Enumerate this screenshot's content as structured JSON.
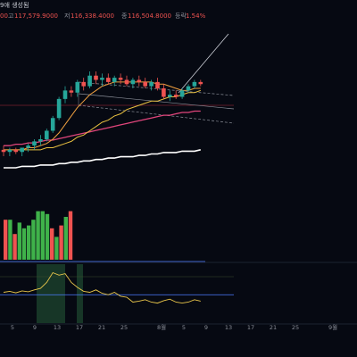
{
  "header": {
    "title_fragment": "9애 생성됨",
    "open_value": "00",
    "high_label": "고",
    "high_value": "117,579.9000",
    "low_label": "저",
    "low_value": "116,338.4000",
    "close_label": "종",
    "close_value": "116,504.8000",
    "change_label": "등락",
    "change_value": "1.54%"
  },
  "time_axis": {
    "labels": [
      "5",
      "9",
      "13",
      "17",
      "21",
      "25",
      "8월",
      "5",
      "9",
      "13",
      "17",
      "21",
      "25",
      "9월"
    ]
  },
  "colors": {
    "background": "#060912",
    "up": "#26a69a",
    "down": "#ef5350",
    "ma_short": "#f0a040",
    "ma_mid": "#e8c040",
    "ma_long": "#e0457b",
    "ma_longest": "#ffffff",
    "oscillator": "#e8c54a",
    "oscillator_signal": "#4d7cff",
    "price_line": "#8a2030"
  },
  "chart_data": {
    "type": "candlestick",
    "title": "",
    "candles": [
      {
        "o": 79,
        "h": 81,
        "l": 76,
        "c": 78
      },
      {
        "o": 78,
        "h": 80,
        "l": 76,
        "c": 79
      },
      {
        "o": 79,
        "h": 80,
        "l": 77,
        "c": 78
      },
      {
        "o": 78,
        "h": 80,
        "l": 76,
        "c": 80
      },
      {
        "o": 80,
        "h": 82,
        "l": 78,
        "c": 81
      },
      {
        "o": 81,
        "h": 84,
        "l": 79,
        "c": 83
      },
      {
        "o": 83,
        "h": 86,
        "l": 81,
        "c": 84
      },
      {
        "o": 84,
        "h": 89,
        "l": 83,
        "c": 88
      },
      {
        "o": 88,
        "h": 95,
        "l": 87,
        "c": 94
      },
      {
        "o": 94,
        "h": 104,
        "l": 93,
        "c": 103
      },
      {
        "o": 103,
        "h": 109,
        "l": 101,
        "c": 107
      },
      {
        "o": 107,
        "h": 109,
        "l": 104,
        "c": 106
      },
      {
        "o": 106,
        "h": 112,
        "l": 104,
        "c": 111
      },
      {
        "o": 111,
        "h": 113,
        "l": 107,
        "c": 109
      },
      {
        "o": 109,
        "h": 116,
        "l": 108,
        "c": 114
      },
      {
        "o": 114,
        "h": 116,
        "l": 110,
        "c": 112
      },
      {
        "o": 112,
        "h": 115,
        "l": 109,
        "c": 113
      },
      {
        "o": 113,
        "h": 115,
        "l": 110,
        "c": 111
      },
      {
        "o": 111,
        "h": 114,
        "l": 109,
        "c": 113
      },
      {
        "o": 113,
        "h": 115,
        "l": 110,
        "c": 112
      },
      {
        "o": 112,
        "h": 114,
        "l": 109,
        "c": 110
      },
      {
        "o": 110,
        "h": 113,
        "l": 108,
        "c": 112
      },
      {
        "o": 112,
        "h": 114,
        "l": 109,
        "c": 111
      },
      {
        "o": 111,
        "h": 113,
        "l": 108,
        "c": 109
      },
      {
        "o": 109,
        "h": 112,
        "l": 107,
        "c": 111
      },
      {
        "o": 111,
        "h": 113,
        "l": 107,
        "c": 108
      },
      {
        "o": 108,
        "h": 110,
        "l": 103,
        "c": 104
      },
      {
        "o": 104,
        "h": 107,
        "l": 102,
        "c": 105
      },
      {
        "o": 105,
        "h": 107,
        "l": 103,
        "c": 104
      },
      {
        "o": 104,
        "h": 108,
        "l": 103,
        "c": 107
      },
      {
        "o": 107,
        "h": 110,
        "l": 106,
        "c": 109
      },
      {
        "o": 109,
        "h": 112,
        "l": 108,
        "c": 111
      },
      {
        "o": 111,
        "h": 112,
        "l": 109,
        "c": 110
      }
    ],
    "ma_short": [
      79,
      79,
      79,
      79,
      80,
      80,
      81,
      82,
      84,
      87,
      91,
      95,
      99,
      102,
      105,
      107,
      109,
      110,
      111,
      111,
      111,
      111,
      111,
      111,
      111,
      110,
      110,
      109,
      108,
      107,
      107,
      108,
      108
    ],
    "ma_mid": [
      79,
      79,
      79,
      79,
      79,
      79,
      79,
      80,
      80,
      81,
      82,
      83,
      85,
      86,
      88,
      90,
      92,
      93,
      95,
      96,
      98,
      99,
      100,
      101,
      102,
      102,
      103,
      104,
      104,
      105,
      106,
      106,
      107
    ],
    "ma_long": [
      56,
      56,
      57,
      57,
      58,
      58,
      59,
      60,
      60,
      61,
      62,
      63,
      64,
      65,
      66,
      67,
      68,
      69,
      70,
      71,
      72,
      73,
      74,
      75,
      76,
      77,
      78,
      78,
      79,
      80,
      80,
      81,
      81
    ],
    "ma_longest": [
      40,
      40,
      40,
      41,
      41,
      41,
      42,
      42,
      42,
      43,
      43,
      44,
      44,
      45,
      45,
      46,
      46,
      47,
      47,
      48,
      48,
      48,
      49,
      49,
      50,
      50,
      51,
      51,
      51,
      52,
      52,
      52,
      53
    ],
    "volume": [
      {
        "v": 14,
        "up": false
      },
      {
        "v": 14,
        "up": true
      },
      {
        "v": 9,
        "up": false
      },
      {
        "v": 13,
        "up": true
      },
      {
        "v": 11,
        "up": true
      },
      {
        "v": 12,
        "up": true
      },
      {
        "v": 14,
        "up": true
      },
      {
        "v": 17,
        "up": true
      },
      {
        "v": 17,
        "up": true
      },
      {
        "v": 16,
        "up": true
      },
      {
        "v": 11,
        "up": false
      },
      {
        "v": 8,
        "up": true
      },
      {
        "v": 12,
        "up": false
      },
      {
        "v": 15,
        "up": true
      },
      {
        "v": 17,
        "up": false
      }
    ],
    "oscillator": [
      50,
      52,
      49,
      53,
      51,
      55,
      58,
      70,
      90,
      85,
      88,
      70,
      60,
      52,
      50,
      55,
      48,
      45,
      50,
      42,
      40,
      30,
      32,
      35,
      30,
      28,
      33,
      36,
      30,
      28,
      30,
      35,
      32
    ],
    "oscillator_signal": 45
  }
}
